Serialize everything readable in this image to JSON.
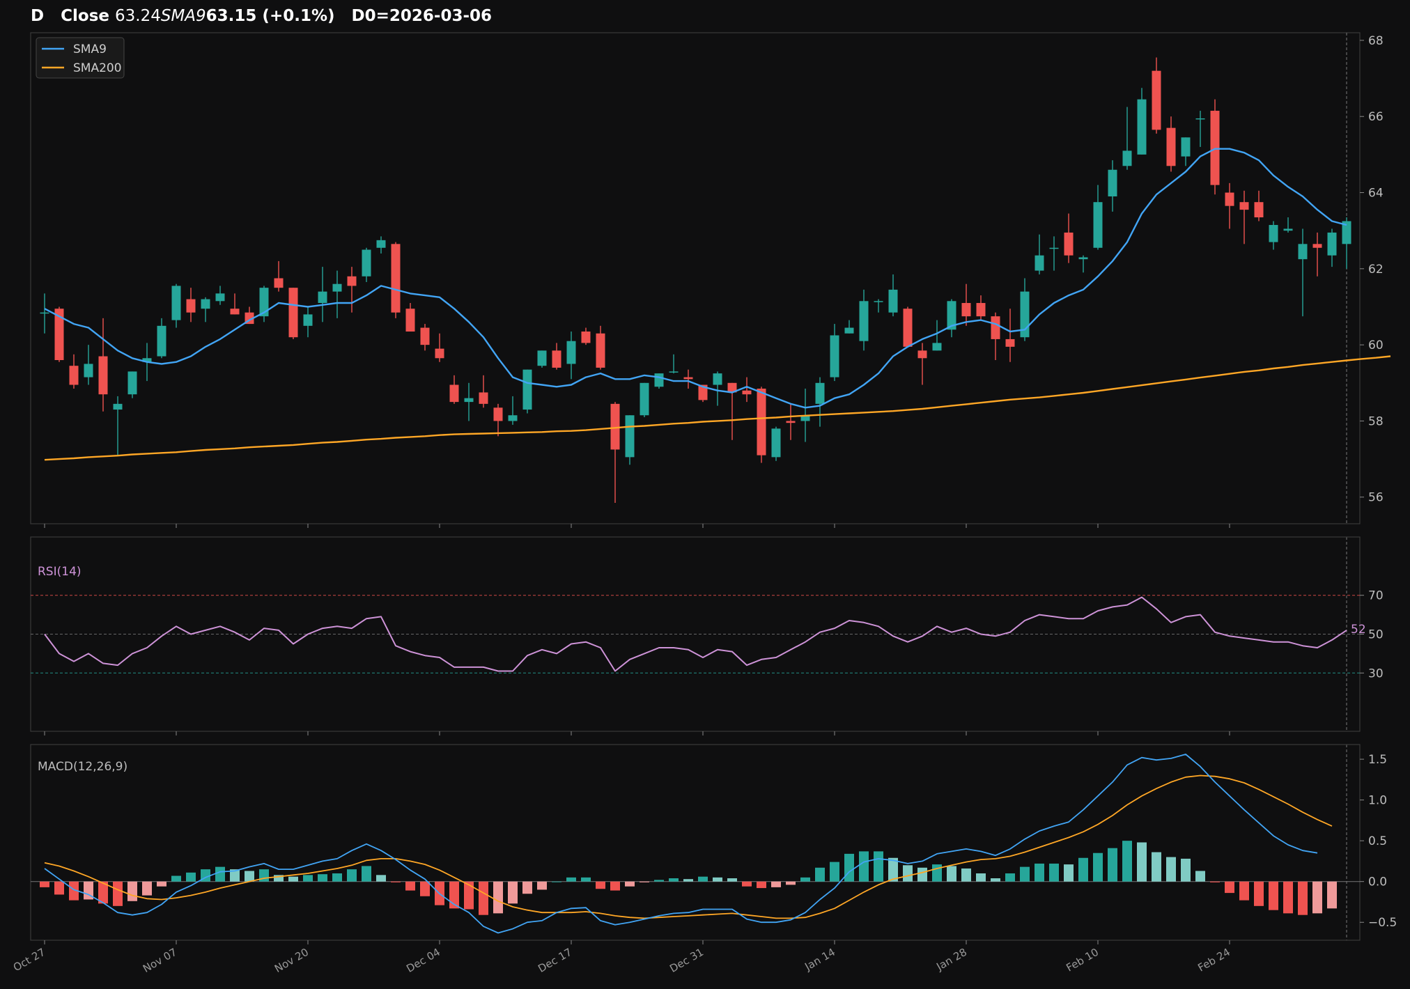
{
  "title": {
    "ticker": "D",
    "close_label": "Close",
    "close_value": "63.24",
    "sma_label": "SMA9",
    "sma_value": "63.15 (+0.1%)",
    "d0": "D0=2026-03-06"
  },
  "colors": {
    "background": "#0f0f10",
    "up": "#26a69a",
    "down": "#ef5350",
    "sma9": "#42a5f5",
    "sma200": "#ffa726",
    "rsi": "#ce93d8",
    "macd": "#42a5f5",
    "signal": "#ffa726"
  },
  "chart_data": {
    "type": "candlestick",
    "x_labels": [
      "Oct 27",
      "Nov 07",
      "Nov 20",
      "Dec 04",
      "Dec 17",
      "Dec 31",
      "Jan 14",
      "Jan 28",
      "Feb 10",
      "Feb 24"
    ],
    "x_label_index": [
      0,
      9,
      18,
      27,
      36,
      45,
      54,
      63,
      72,
      81
    ],
    "price_panel": {
      "ylim": [
        55.3,
        68.2
      ],
      "yticks": [
        "56",
        "58",
        "60",
        "62",
        "64",
        "66",
        "68"
      ],
      "legend": [
        {
          "name": "SMA9",
          "color": "#42a5f5"
        },
        {
          "name": "SMA200",
          "color": "#ffa726"
        }
      ],
      "ohlc": [
        [
          60.85,
          61.35,
          60.3,
          60.85
        ],
        [
          60.95,
          61.0,
          59.55,
          59.6
        ],
        [
          59.45,
          59.75,
          58.85,
          58.95
        ],
        [
          59.15,
          60.0,
          58.95,
          59.5
        ],
        [
          59.7,
          60.7,
          58.25,
          58.7
        ],
        [
          58.3,
          58.65,
          57.1,
          58.45
        ],
        [
          58.7,
          59.3,
          58.6,
          59.3
        ],
        [
          59.55,
          60.05,
          59.05,
          59.65
        ],
        [
          59.7,
          60.7,
          59.65,
          60.5
        ],
        [
          60.65,
          61.6,
          60.45,
          61.55
        ],
        [
          61.2,
          61.5,
          60.6,
          60.85
        ],
        [
          60.95,
          61.25,
          60.6,
          61.2
        ],
        [
          61.15,
          61.55,
          61.05,
          61.35
        ],
        [
          60.95,
          61.35,
          60.8,
          60.8
        ],
        [
          60.85,
          61.0,
          60.55,
          60.55
        ],
        [
          60.75,
          61.55,
          60.6,
          61.5
        ],
        [
          61.75,
          62.2,
          61.4,
          61.5
        ],
        [
          61.5,
          61.5,
          60.15,
          60.2
        ],
        [
          60.5,
          61.0,
          60.2,
          60.8
        ],
        [
          61.1,
          62.05,
          60.6,
          61.4
        ],
        [
          61.4,
          61.95,
          60.7,
          61.6
        ],
        [
          61.8,
          62.05,
          60.85,
          61.55
        ],
        [
          61.8,
          62.55,
          61.65,
          62.5
        ],
        [
          62.55,
          62.85,
          62.4,
          62.75
        ],
        [
          62.65,
          62.7,
          60.7,
          60.85
        ],
        [
          60.95,
          61.1,
          60.35,
          60.35
        ],
        [
          60.45,
          60.55,
          59.85,
          60.0
        ],
        [
          59.9,
          60.3,
          59.55,
          59.65
        ],
        [
          58.95,
          59.2,
          58.45,
          58.5
        ],
        [
          58.5,
          59.0,
          58.0,
          58.6
        ],
        [
          58.75,
          59.2,
          58.35,
          58.45
        ],
        [
          58.35,
          58.45,
          57.6,
          58.0
        ],
        [
          58.0,
          58.65,
          57.9,
          58.15
        ],
        [
          58.3,
          59.35,
          58.2,
          59.35
        ],
        [
          59.45,
          59.85,
          59.4,
          59.85
        ],
        [
          59.85,
          60.05,
          59.35,
          59.4
        ],
        [
          59.5,
          60.35,
          59.1,
          60.1
        ],
        [
          60.35,
          60.45,
          60.0,
          60.05
        ],
        [
          60.3,
          60.5,
          59.35,
          59.4
        ],
        [
          58.45,
          58.5,
          55.85,
          57.25
        ],
        [
          57.05,
          58.15,
          56.85,
          58.15
        ],
        [
          58.15,
          59.0,
          58.1,
          59.0
        ],
        [
          58.9,
          59.25,
          58.85,
          59.25
        ],
        [
          59.3,
          59.75,
          59.25,
          59.3
        ],
        [
          59.15,
          59.35,
          58.85,
          59.1
        ],
        [
          58.95,
          58.95,
          58.5,
          58.55
        ],
        [
          58.95,
          59.3,
          58.4,
          59.25
        ],
        [
          59.0,
          59.0,
          57.5,
          58.75
        ],
        [
          58.8,
          59.15,
          58.5,
          58.7
        ],
        [
          58.85,
          58.9,
          56.9,
          57.1
        ],
        [
          57.05,
          57.85,
          56.95,
          57.8
        ],
        [
          58.0,
          58.45,
          57.5,
          57.95
        ],
        [
          58.0,
          58.85,
          57.45,
          58.15
        ],
        [
          58.45,
          59.15,
          57.85,
          59.0
        ],
        [
          59.15,
          60.55,
          59.05,
          60.25
        ],
        [
          60.3,
          60.65,
          60.3,
          60.45
        ],
        [
          60.1,
          61.45,
          59.85,
          61.15
        ],
        [
          61.15,
          61.2,
          60.85,
          61.15
        ],
        [
          60.85,
          61.85,
          60.75,
          61.45
        ],
        [
          60.95,
          61.0,
          59.95,
          59.95
        ],
        [
          59.85,
          60.05,
          58.95,
          59.65
        ],
        [
          59.85,
          60.65,
          59.85,
          60.05
        ],
        [
          60.4,
          61.2,
          60.2,
          61.15
        ],
        [
          61.1,
          61.6,
          60.5,
          60.75
        ],
        [
          61.1,
          61.3,
          60.65,
          60.75
        ],
        [
          60.75,
          60.85,
          59.6,
          60.15
        ],
        [
          60.15,
          60.95,
          59.55,
          59.95
        ],
        [
          60.2,
          61.75,
          60.1,
          61.4
        ],
        [
          61.95,
          62.9,
          61.85,
          62.35
        ],
        [
          62.55,
          62.85,
          61.95,
          62.55
        ],
        [
          62.95,
          63.45,
          62.15,
          62.35
        ],
        [
          62.25,
          62.35,
          61.9,
          62.3
        ],
        [
          62.55,
          64.2,
          62.5,
          63.75
        ],
        [
          63.9,
          64.85,
          63.5,
          64.6
        ],
        [
          64.7,
          66.25,
          64.6,
          65.1
        ],
        [
          65.0,
          66.75,
          65.0,
          66.45
        ],
        [
          67.2,
          67.55,
          65.55,
          65.65
        ],
        [
          65.7,
          66.0,
          64.55,
          64.7
        ],
        [
          64.95,
          65.45,
          64.7,
          65.45
        ],
        [
          65.95,
          66.15,
          65.2,
          65.95
        ],
        [
          66.15,
          66.45,
          63.95,
          64.2
        ],
        [
          64.0,
          64.25,
          63.05,
          63.65
        ],
        [
          63.75,
          64.05,
          62.65,
          63.55
        ],
        [
          63.75,
          64.05,
          63.25,
          63.35
        ],
        [
          62.7,
          63.25,
          62.5,
          63.15
        ],
        [
          63.0,
          63.35,
          62.95,
          63.05
        ],
        [
          62.25,
          63.05,
          60.75,
          62.65
        ],
        [
          62.65,
          62.95,
          61.8,
          62.55
        ],
        [
          62.35,
          63.05,
          62.05,
          62.95
        ],
        [
          62.65,
          63.35,
          62.0,
          63.25
        ]
      ],
      "sma9": [
        60.95,
        60.75,
        60.55,
        60.45,
        60.15,
        59.85,
        59.65,
        59.55,
        59.5,
        59.55,
        59.7,
        59.95,
        60.15,
        60.4,
        60.65,
        60.85,
        61.1,
        61.05,
        61.0,
        61.05,
        61.1,
        61.1,
        61.3,
        61.55,
        61.45,
        61.35,
        61.3,
        61.25,
        60.95,
        60.6,
        60.2,
        59.65,
        59.15,
        59.0,
        58.95,
        58.9,
        58.95,
        59.15,
        59.25,
        59.1,
        59.1,
        59.2,
        59.15,
        59.05,
        59.05,
        58.9,
        58.8,
        58.75,
        58.9,
        58.75,
        58.6,
        58.45,
        58.35,
        58.4,
        58.6,
        58.7,
        58.95,
        59.25,
        59.7,
        59.95,
        60.15,
        60.3,
        60.5,
        60.6,
        60.65,
        60.55,
        60.35,
        60.4,
        60.8,
        61.1,
        61.3,
        61.45,
        61.8,
        62.2,
        62.7,
        63.45,
        63.95,
        64.25,
        64.55,
        64.95,
        65.15,
        65.15,
        65.05,
        64.85,
        64.45,
        64.15,
        63.9,
        63.55,
        63.25,
        63.15
      ],
      "sma200": [
        56.98,
        57.0,
        57.02,
        57.05,
        57.07,
        57.09,
        57.12,
        57.14,
        57.16,
        57.18,
        57.21,
        57.24,
        57.26,
        57.28,
        57.31,
        57.33,
        57.35,
        57.37,
        57.4,
        57.43,
        57.45,
        57.48,
        57.51,
        57.53,
        57.56,
        57.58,
        57.6,
        57.63,
        57.65,
        57.66,
        57.67,
        57.68,
        57.69,
        57.7,
        57.71,
        57.73,
        57.74,
        57.76,
        57.79,
        57.82,
        57.85,
        57.87,
        57.9,
        57.93,
        57.95,
        57.98,
        58.0,
        58.02,
        58.05,
        58.07,
        58.09,
        58.12,
        58.14,
        58.16,
        58.18,
        58.2,
        58.22,
        58.24,
        58.26,
        58.29,
        58.32,
        58.36,
        58.4,
        58.44,
        58.48,
        58.52,
        58.56,
        58.59,
        58.62,
        58.66,
        58.7,
        58.74,
        58.79,
        58.84,
        58.89,
        58.94,
        58.99,
        59.04,
        59.09,
        59.14,
        59.19,
        59.24,
        59.29,
        59.33,
        59.38,
        59.42,
        59.47,
        59.51,
        59.55,
        59.59,
        59.63,
        59.66,
        59.7
      ]
    },
    "rsi_panel": {
      "label": "RSI(14)",
      "ylim": [
        0,
        100
      ],
      "yticks": [
        "30",
        "50",
        "70"
      ],
      "levels": [
        30,
        50,
        70
      ],
      "last_value_label": "52",
      "values": [
        50,
        40,
        36,
        40,
        35,
        34,
        40,
        43,
        49,
        54,
        50,
        52,
        54,
        51,
        47,
        53,
        52,
        45,
        50,
        53,
        54,
        53,
        58,
        59,
        44,
        41,
        39,
        38,
        33,
        33,
        33,
        31,
        31,
        39,
        42,
        40,
        45,
        46,
        43,
        31,
        37,
        40,
        43,
        43,
        42,
        38,
        42,
        41,
        34,
        37,
        38,
        42,
        46,
        51,
        53,
        57,
        56,
        54,
        49,
        46,
        49,
        54,
        51,
        53,
        50,
        49,
        51,
        57,
        60,
        59,
        58,
        58,
        62,
        64,
        65,
        69,
        63,
        56,
        59,
        60,
        51,
        49,
        48,
        47,
        46,
        46,
        44,
        43,
        47,
        52
      ]
    },
    "macd_panel": {
      "label": "MACD(12,26,9)",
      "ylim": [
        -0.72,
        1.68
      ],
      "yticks": [
        "−0.5",
        "0.0",
        "0.5",
        "1.0",
        "1.5"
      ],
      "macd": [
        0.16,
        0.03,
        -0.1,
        -0.16,
        -0.26,
        -0.38,
        -0.41,
        -0.38,
        -0.28,
        -0.13,
        -0.05,
        0.05,
        0.12,
        0.13,
        0.18,
        0.22,
        0.15,
        0.15,
        0.2,
        0.25,
        0.28,
        0.38,
        0.46,
        0.38,
        0.27,
        0.14,
        0.03,
        -0.15,
        -0.28,
        -0.38,
        -0.55,
        -0.63,
        -0.58,
        -0.5,
        -0.48,
        -0.38,
        -0.33,
        -0.32,
        -0.48,
        -0.53,
        -0.5,
        -0.46,
        -0.42,
        -0.39,
        -0.38,
        -0.34,
        -0.34,
        -0.34,
        -0.46,
        -0.5,
        -0.5,
        -0.47,
        -0.38,
        -0.22,
        -0.08,
        0.12,
        0.24,
        0.28,
        0.26,
        0.22,
        0.25,
        0.34,
        0.37,
        0.4,
        0.37,
        0.32,
        0.4,
        0.52,
        0.62,
        0.68,
        0.73,
        0.88,
        1.05,
        1.22,
        1.43,
        1.52,
        1.49,
        1.51,
        1.56,
        1.41,
        1.22,
        1.05,
        0.88,
        0.72,
        0.56,
        0.45,
        0.38,
        0.35
      ],
      "signal": [
        0.23,
        0.19,
        0.13,
        0.06,
        -0.02,
        -0.1,
        -0.17,
        -0.21,
        -0.22,
        -0.2,
        -0.17,
        -0.13,
        -0.08,
        -0.04,
        0.0,
        0.04,
        0.06,
        0.08,
        0.1,
        0.13,
        0.16,
        0.2,
        0.26,
        0.28,
        0.28,
        0.25,
        0.21,
        0.14,
        0.05,
        -0.04,
        -0.14,
        -0.24,
        -0.31,
        -0.35,
        -0.38,
        -0.38,
        -0.38,
        -0.37,
        -0.39,
        -0.42,
        -0.44,
        -0.45,
        -0.44,
        -0.43,
        -0.42,
        -0.41,
        -0.4,
        -0.39,
        -0.41,
        -0.43,
        -0.45,
        -0.45,
        -0.44,
        -0.39,
        -0.33,
        -0.23,
        -0.13,
        -0.04,
        0.03,
        0.07,
        0.11,
        0.16,
        0.2,
        0.24,
        0.27,
        0.28,
        0.31,
        0.36,
        0.42,
        0.48,
        0.54,
        0.61,
        0.7,
        0.81,
        0.94,
        1.05,
        1.14,
        1.22,
        1.28,
        1.3,
        1.29,
        1.26,
        1.21,
        1.13,
        1.04,
        0.95,
        0.85,
        0.76,
        0.68
      ],
      "hist": [
        -0.07,
        -0.16,
        -0.23,
        -0.22,
        -0.27,
        -0.3,
        -0.24,
        -0.17,
        -0.06,
        0.07,
        0.11,
        0.15,
        0.18,
        0.15,
        0.13,
        0.15,
        0.08,
        0.06,
        0.08,
        0.09,
        0.1,
        0.15,
        0.19,
        0.08,
        -0.01,
        -0.11,
        -0.18,
        -0.29,
        -0.33,
        -0.34,
        -0.41,
        -0.39,
        -0.27,
        -0.15,
        -0.1,
        0.0,
        0.05,
        0.05,
        -0.09,
        -0.11,
        -0.06,
        -0.01,
        0.02,
        0.04,
        0.03,
        0.06,
        0.05,
        0.04,
        -0.06,
        -0.08,
        -0.07,
        -0.04,
        0.05,
        0.17,
        0.24,
        0.34,
        0.37,
        0.37,
        0.29,
        0.2,
        0.17,
        0.21,
        0.19,
        0.16,
        0.1,
        0.04,
        0.1,
        0.18,
        0.22,
        0.22,
        0.21,
        0.29,
        0.35,
        0.41,
        0.5,
        0.48,
        0.36,
        0.3,
        0.28,
        0.13,
        -0.01,
        -0.14,
        -0.23,
        -0.3,
        -0.35,
        -0.39,
        -0.41,
        -0.39,
        -0.33
      ]
    }
  }
}
